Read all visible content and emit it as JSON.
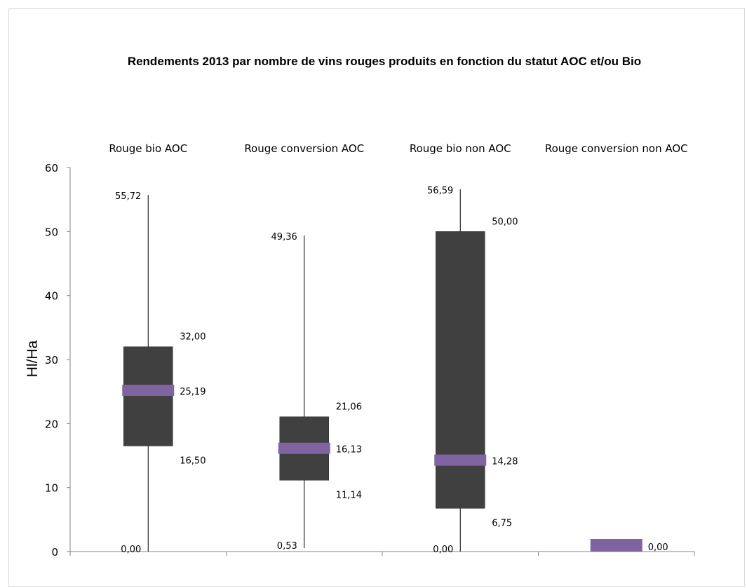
{
  "chart_data": {
    "type": "box",
    "title": "Rendements 2013 par nombre de vins rouges produits en fonction du statut AOC et/ou Bio",
    "ylabel": "Hl/Ha",
    "xlabel": "",
    "ylim": [
      0,
      60
    ],
    "yticks": [
      "0",
      "10",
      "20",
      "30",
      "40",
      "50",
      "60"
    ],
    "grid": false,
    "categories": [
      "Rouge bio AOC",
      "Rouge conversion AOC",
      "Rouge bio non AOC",
      "Rouge conversion non AOC"
    ],
    "series": [
      {
        "category": "Rouge bio AOC",
        "min": 0.0,
        "q1": 16.5,
        "median": 25.19,
        "q3": 32.0,
        "max": 55.72,
        "labels": {
          "min": "0,00",
          "q1": "16,50",
          "median": "25,19",
          "q3": "32,00",
          "max": "55,72"
        }
      },
      {
        "category": "Rouge conversion AOC",
        "min": 0.53,
        "q1": 11.14,
        "median": 16.13,
        "q3": 21.06,
        "max": 49.36,
        "labels": {
          "min": "0,53",
          "q1": "11,14",
          "median": "16,13",
          "q3": "21,06",
          "max": "49,36"
        }
      },
      {
        "category": "Rouge bio non AOC",
        "min": 0.0,
        "q1": 6.75,
        "median": 14.28,
        "q3": 50.0,
        "max": 56.59,
        "labels": {
          "min": "0,00",
          "q1": "6,75",
          "median": "14,28",
          "q3": "50,00",
          "max": "56,59"
        }
      },
      {
        "category": "Rouge conversion non AOC",
        "min": 0.0,
        "q1": 0.0,
        "median": 0.0,
        "q3": 0.0,
        "max": 0.0,
        "labels": {
          "median": "0,00"
        }
      }
    ],
    "colors": {
      "box": "#404040",
      "median": "#8064a2",
      "whisker": "#000000",
      "axis": "#868686"
    }
  }
}
